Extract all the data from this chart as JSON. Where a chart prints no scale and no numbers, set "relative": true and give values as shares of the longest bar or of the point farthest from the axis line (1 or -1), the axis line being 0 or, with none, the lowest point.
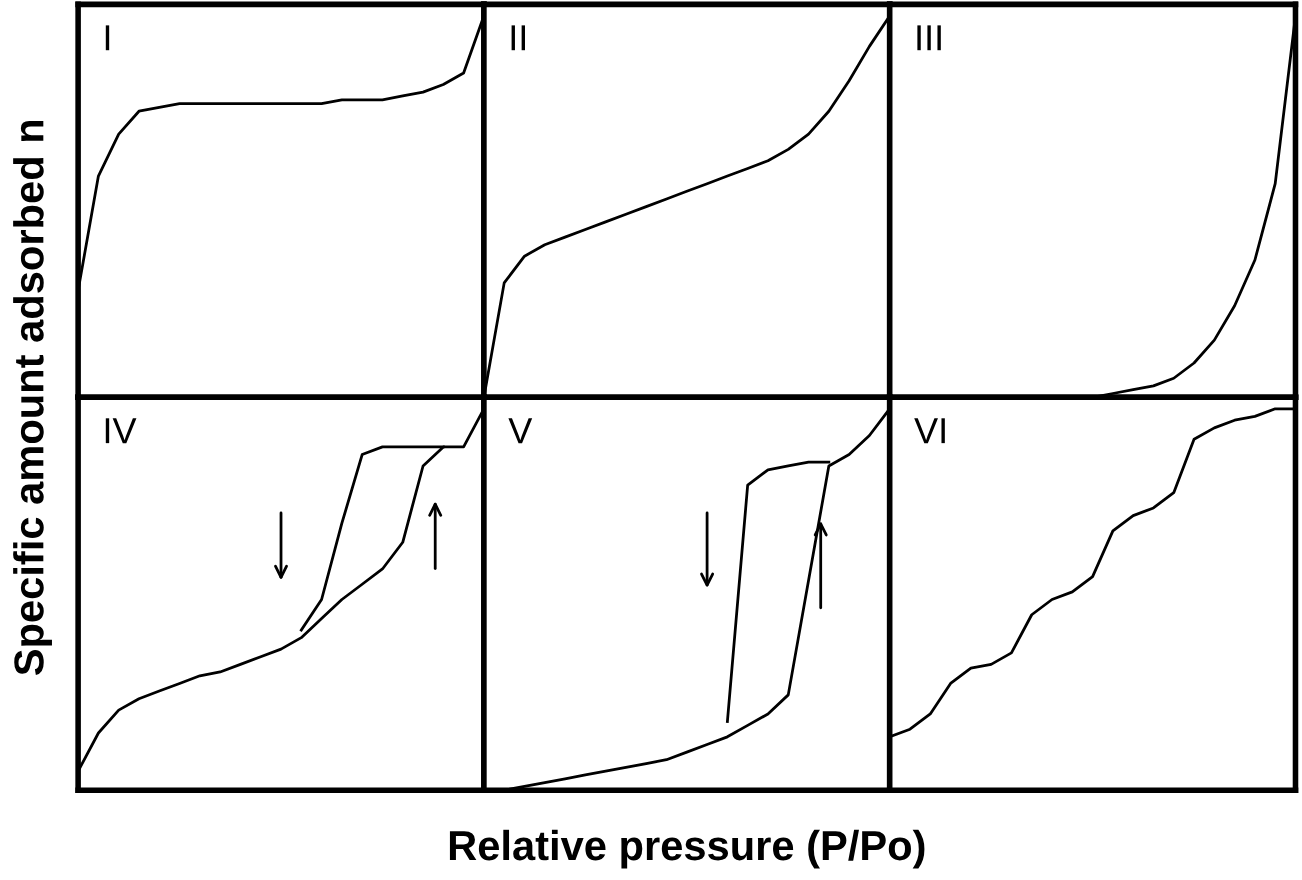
{
  "chart_data": [
    {
      "type": "line",
      "relative": true,
      "annotations": [
        "I"
      ],
      "ylabel": "Specific amount adsorbed n",
      "categories": [
        null,
        null,
        null,
        null,
        null,
        null,
        null,
        null,
        null,
        null,
        null,
        null,
        null,
        null,
        null,
        null,
        null,
        null,
        null,
        null,
        null
      ],
      "series": [
        {
          "color": "#000000",
          "values": [
            0.28,
            0.58,
            0.69,
            0.75,
            0.76,
            0.77,
            0.77,
            0.77,
            0.77,
            0.77,
            0.77,
            0.77,
            0.77,
            0.78,
            0.78,
            0.78,
            0.79,
            0.8,
            0.82,
            0.85,
            1
          ]
        }
      ]
    },
    {
      "type": "line",
      "relative": true,
      "annotations": [
        "II"
      ],
      "categories": [
        null,
        null,
        null,
        null,
        null,
        null,
        null,
        null,
        null,
        null,
        null,
        null,
        null,
        null,
        null,
        null,
        null,
        null,
        null,
        null,
        null
      ],
      "series": [
        {
          "color": "#000000",
          "values": [
            0,
            0.3,
            0.37,
            0.4,
            0.42,
            0.44,
            0.46,
            0.48,
            0.5,
            0.52,
            0.54,
            0.56,
            0.58,
            0.6,
            0.62,
            0.65,
            0.69,
            0.75,
            0.83,
            0.92,
            1
          ]
        }
      ]
    },
    {
      "type": "line",
      "relative": true,
      "annotations": [
        "III"
      ],
      "categories": [
        null,
        null,
        null,
        null,
        null,
        null,
        null,
        null,
        null,
        null,
        null,
        null,
        null,
        null,
        null,
        null,
        null,
        null,
        null,
        null,
        null
      ],
      "series": [
        {
          "color": "#000000",
          "values": [
            0,
            0,
            0,
            0,
            0,
            0,
            0,
            0,
            0,
            0,
            0,
            0.01,
            0.02,
            0.03,
            0.05,
            0.09,
            0.15,
            0.24,
            0.36,
            0.56,
            1
          ]
        }
      ]
    },
    {
      "type": "line",
      "relative": true,
      "annotations": [
        "IV"
      ],
      "categories": [
        null,
        null,
        null,
        null,
        null,
        null,
        null,
        null,
        null,
        null,
        null,
        null,
        null,
        null,
        null,
        null,
        null,
        null,
        null,
        null,
        null
      ],
      "series": [
        {
          "color": "#000000",
          "values": [
            0.05,
            0.15,
            0.21,
            0.24,
            0.26,
            0.28,
            0.3,
            0.31,
            0.33,
            0.35,
            0.37,
            0.4,
            0.45,
            0.5,
            0.54,
            0.58,
            0.65,
            0.85,
            0.9,
            0.9,
            1
          ]
        },
        {
          "color": "#000000",
          "values": [
            null,
            null,
            null,
            null,
            null,
            null,
            null,
            null,
            null,
            null,
            null,
            0.42,
            0.5,
            0.7,
            0.88,
            0.9,
            0.9,
            0.9,
            0.9,
            null,
            null
          ]
        }
      ]
    },
    {
      "type": "line",
      "relative": true,
      "annotations": [
        "V"
      ],
      "xlabel": "Relative pressure (P/Po)",
      "categories": [
        null,
        null,
        null,
        null,
        null,
        null,
        null,
        null,
        null,
        null,
        null,
        null,
        null,
        null,
        null,
        null,
        null,
        null,
        null,
        null,
        null
      ],
      "series": [
        {
          "color": "#000000",
          "values": [
            0,
            0,
            0.01,
            0.02,
            0.03,
            0.04,
            0.05,
            0.06,
            0.07,
            0.08,
            0.1,
            0.12,
            0.14,
            0.17,
            0.2,
            0.25,
            0.55,
            0.85,
            0.88,
            0.93,
            1
          ]
        },
        {
          "color": "#000000",
          "values": [
            null,
            null,
            null,
            null,
            null,
            null,
            null,
            null,
            null,
            null,
            null,
            null,
            0.18,
            0.8,
            0.84,
            0.85,
            0.86,
            0.86,
            null,
            null,
            null
          ]
        }
      ]
    },
    {
      "type": "line",
      "relative": true,
      "annotations": [
        "VI"
      ],
      "categories": [
        null,
        null,
        null,
        null,
        null,
        null,
        null,
        null,
        null,
        null,
        null,
        null,
        null,
        null,
        null,
        null,
        null,
        null,
        null,
        null,
        null
      ],
      "series": [
        {
          "color": "#000000",
          "values": [
            0.14,
            0.16,
            0.2,
            0.28,
            0.32,
            0.33,
            0.36,
            0.46,
            0.5,
            0.52,
            0.56,
            0.68,
            0.72,
            0.74,
            0.78,
            0.92,
            0.95,
            0.97,
            0.98,
            1,
            1
          ]
        }
      ]
    }
  ]
}
